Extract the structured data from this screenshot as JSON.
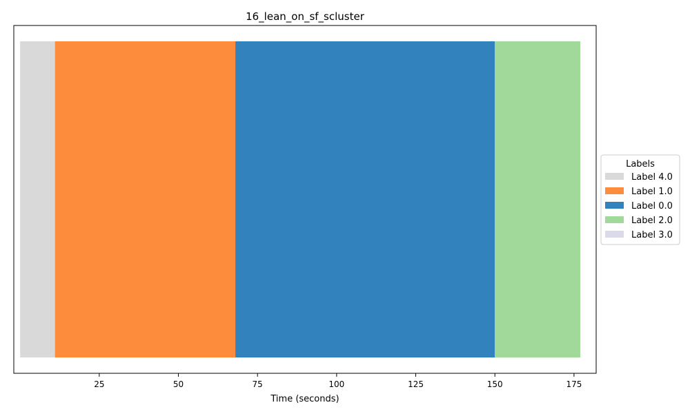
{
  "chart_data": {
    "type": "timeline",
    "title": "16_lean_on_sf_scluster",
    "xlabel": "Time (seconds)",
    "ylabel": "",
    "xlim": [
      -2,
      182
    ],
    "xticks": [
      25,
      50,
      75,
      100,
      125,
      150,
      175
    ],
    "segments": [
      {
        "label": "Label 4.0",
        "start": 0,
        "end": 11,
        "color": "#d9d9d9"
      },
      {
        "label": "Label 1.0",
        "start": 11,
        "end": 68,
        "color": "#fd8d3c"
      },
      {
        "label": "Label 0.0",
        "start": 68,
        "end": 150,
        "color": "#3182bd"
      },
      {
        "label": "Label 2.0",
        "start": 150,
        "end": 177,
        "color": "#a1d99b"
      }
    ],
    "legend": {
      "title": "Labels",
      "placement": "center-right, outside plot",
      "items": [
        {
          "label": "Label 4.0",
          "color": "#d9d9d9"
        },
        {
          "label": "Label 1.0",
          "color": "#fd8d3c"
        },
        {
          "label": "Label 0.0",
          "color": "#3182bd"
        },
        {
          "label": "Label 2.0",
          "color": "#a1d99b"
        },
        {
          "label": "Label 3.0",
          "color": "#dadaeb"
        }
      ]
    },
    "grid": false
  }
}
